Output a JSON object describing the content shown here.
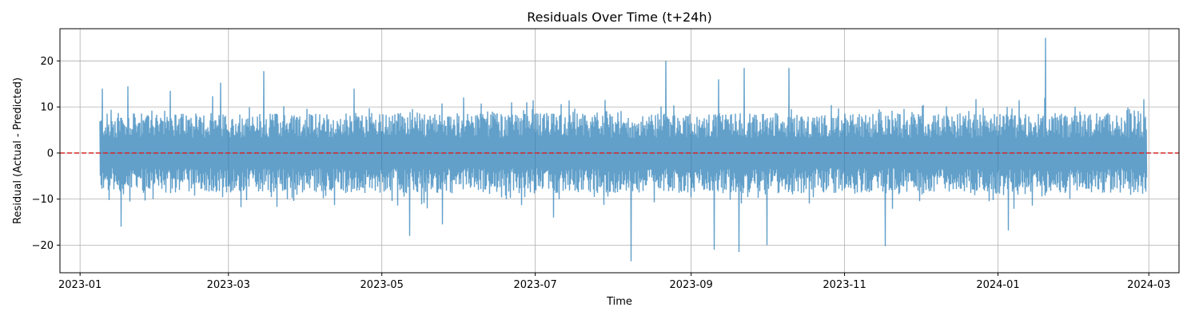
{
  "chart_data": {
    "type": "line",
    "title": "Residuals Over Time (t+24h)",
    "xlabel": "Time",
    "ylabel": "Residual (Actual - Predicted)",
    "x_range": [
      "2022-12-24",
      "2024-03-13"
    ],
    "ylim": [
      -26,
      27
    ],
    "x_ticks": [
      "2023-01",
      "2023-03",
      "2023-05",
      "2023-07",
      "2023-09",
      "2023-11",
      "2024-01",
      "2024-03"
    ],
    "y_ticks": [
      -20,
      -10,
      0,
      10,
      20
    ],
    "grid": true,
    "series": [
      {
        "color": "#1f77b4",
        "opacity": 0.7,
        "x_start": "2023-01-09",
        "x_end": "2024-02-29",
        "frequency": "hourly",
        "typical_range": [
          -6,
          6
        ],
        "notable_points": [
          {
            "x": "2023-01-10",
            "y": 14
          },
          {
            "x": "2023-01-17",
            "y": -16
          },
          {
            "x": "2023-01-20",
            "y": 14.5
          },
          {
            "x": "2023-02-06",
            "y": 13.5
          },
          {
            "x": "2023-02-26",
            "y": 15.3
          },
          {
            "x": "2023-03-15",
            "y": 17.8
          },
          {
            "x": "2023-04-20",
            "y": 14
          },
          {
            "x": "2023-05-12",
            "y": -18
          },
          {
            "x": "2023-05-25",
            "y": -15.5
          },
          {
            "x": "2023-07-08",
            "y": -14
          },
          {
            "x": "2023-08-08",
            "y": -23.5
          },
          {
            "x": "2023-08-22",
            "y": 20
          },
          {
            "x": "2023-09-10",
            "y": -21
          },
          {
            "x": "2023-09-12",
            "y": 16
          },
          {
            "x": "2023-09-20",
            "y": -21.5
          },
          {
            "x": "2023-09-22",
            "y": 18.5
          },
          {
            "x": "2023-10-01",
            "y": -20
          },
          {
            "x": "2023-10-10",
            "y": 18.5
          },
          {
            "x": "2023-11-17",
            "y": -20.2
          },
          {
            "x": "2024-01-05",
            "y": -16.8
          },
          {
            "x": "2024-01-20",
            "y": 25
          }
        ]
      }
    ],
    "reference_line": {
      "y": 0,
      "color": "#d62728",
      "style": "dashed"
    }
  }
}
